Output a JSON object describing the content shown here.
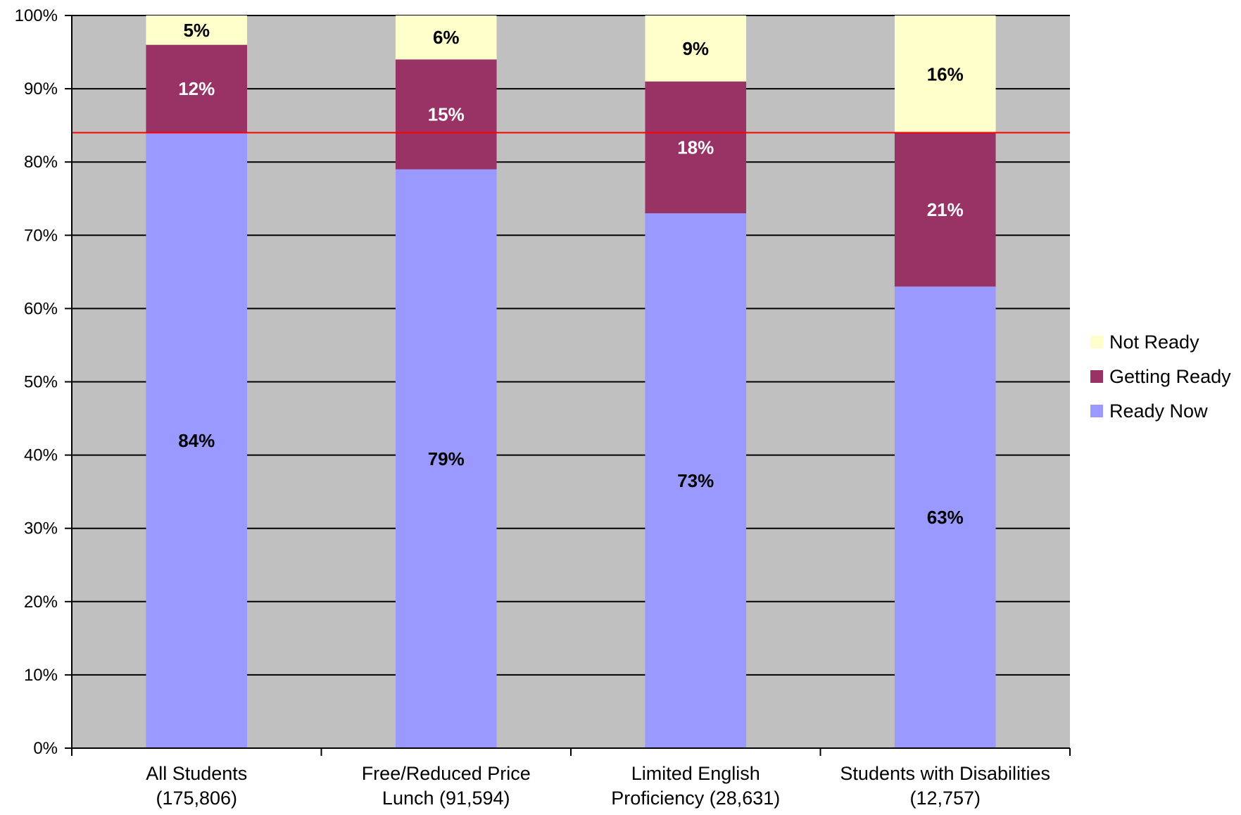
{
  "chart_data": {
    "type": "bar",
    "stacked": true,
    "categories": [
      [
        "All Students",
        "(175,806)"
      ],
      [
        "Free/Reduced Price",
        "Lunch (91,594)"
      ],
      [
        "Limited English",
        "Proficiency (28,631)"
      ],
      [
        "Students with Disabilities",
        "(12,757)"
      ]
    ],
    "series": [
      {
        "name": "Ready Now",
        "values": [
          84,
          79,
          73,
          63
        ],
        "color": "#9999ff",
        "label_color": "#000000"
      },
      {
        "name": "Getting Ready",
        "values": [
          12,
          15,
          18,
          21
        ],
        "color": "#993366",
        "label_color": "#ffffff"
      },
      {
        "name": "Not Ready",
        "values": [
          5,
          6,
          9,
          16
        ],
        "color": "#ffffcc",
        "label_color": "#000000"
      }
    ],
    "data_label_format": "{v}%",
    "ylim": [
      0,
      100
    ],
    "yticks": [
      "0%",
      "10%",
      "20%",
      "30%",
      "40%",
      "50%",
      "60%",
      "70%",
      "80%",
      "90%",
      "100%"
    ],
    "reference_line": {
      "value": 84,
      "color": "#ff0000"
    },
    "plot_background": "#c0c0c0",
    "gridlines": true,
    "legend_position": "right",
    "legend_order": [
      "Not Ready",
      "Getting Ready",
      "Ready Now"
    ],
    "title": "",
    "xlabel": "",
    "ylabel": ""
  }
}
